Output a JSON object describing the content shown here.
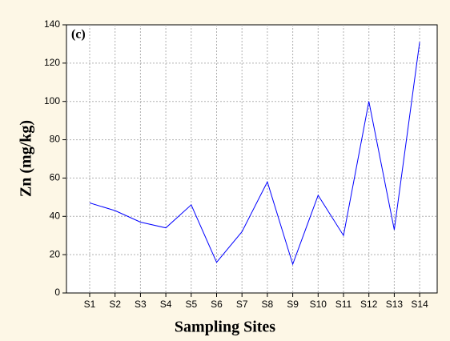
{
  "chart_data": {
    "type": "line",
    "annotation": "(c)",
    "x_label": "Sampling Sites",
    "y_label": "Zn (mg/kg)",
    "categories": [
      "S1",
      "S2",
      "S3",
      "S4",
      "S5",
      "S6",
      "S7",
      "S8",
      "S9",
      "S10",
      "S11",
      "S12",
      "S13",
      "S14"
    ],
    "series": [
      {
        "name": "Zn",
        "color": "#0000ff",
        "values": [
          47,
          43,
          37,
          34,
          46,
          16,
          32,
          58,
          15,
          51,
          30,
          100,
          33,
          131
        ]
      }
    ],
    "ylim": [
      0,
      140
    ],
    "yticks": [
      0,
      20,
      40,
      60,
      80,
      100,
      120,
      140
    ],
    "grid": true
  }
}
